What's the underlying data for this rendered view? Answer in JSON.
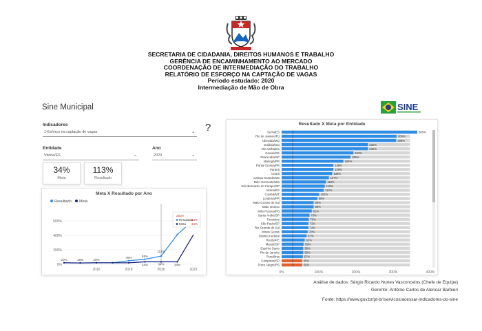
{
  "header": {
    "lines": [
      "SECRETARIA DE CIDADANIA, DIREITOS HUMANOS E TRABALHO",
      "GERÊNCIA DE ENCAMINHAMENTO AO MERCADO",
      "COORDENAÇÃO DE INTERMEDIAÇÃO DO TRABALHO",
      "RELATÓRIO DE ESFORÇO NA CAPTAÇÃO DE VAGAS",
      "Período estudado: 2020",
      "Intermediação de Mão de Obra"
    ]
  },
  "dashboard": {
    "title": "Sine Municipal",
    "logo_text": "SINE",
    "filters": {
      "indicadores_label": "Indicadores",
      "indicadores_value": "1-Esforço na captação de vagas",
      "entidade_label": "Entidade",
      "entidade_value": "Vitória/ES",
      "ano_label": "Ano",
      "ano_value": "2020",
      "help": "?"
    },
    "cards": [
      {
        "value": "34%",
        "label": "Meta"
      },
      {
        "value": "113%",
        "label": "Resultado"
      }
    ]
  },
  "colors": {
    "resultado": "#2f8de4",
    "meta": "#1a237e",
    "highlight": "#e06030",
    "gray_bar": "#d6d6d6"
  },
  "line_chart": {
    "title": "Meta X Resultado por Ano",
    "legend": [
      "Resultado",
      "Meta"
    ],
    "tooltip": {
      "year": "2020",
      "rows": [
        {
          "name": "Resultado",
          "value": "113%"
        },
        {
          "name": "Meta",
          "value": "34%"
        }
      ]
    }
  },
  "chart_data": [
    {
      "type": "line",
      "title": "Meta X Resultado por Ano",
      "x": [
        2014,
        2015,
        2016,
        2017,
        2018,
        2019,
        2020,
        2021,
        2022
      ],
      "xticks": [
        "2016",
        "2018",
        "2020",
        "2022"
      ],
      "ylim": [
        0,
        800
      ],
      "yticks": [
        "0%",
        "200%",
        "400%",
        "600%"
      ],
      "series": [
        {
          "name": "Resultado",
          "values": [
            20,
            18,
            20,
            20,
            49,
            69,
            113,
            410,
            610
          ]
        },
        {
          "name": "Meta",
          "values": [
            20,
            18,
            20,
            20,
            20,
            34,
            34,
            34,
            410
          ]
        }
      ],
      "point_labels": [
        {
          "x": 2014,
          "label": "20%"
        },
        {
          "x": 2015,
          "label": "18%"
        },
        {
          "x": 2016,
          "label": "20%"
        },
        {
          "x": 2018,
          "label": "49%"
        },
        {
          "x": 2019,
          "label": "69%"
        },
        {
          "x": 2019,
          "label": "34%"
        },
        {
          "x": 2020,
          "label": "113%"
        },
        {
          "x": 2020,
          "label": "34%"
        },
        {
          "x": 2021,
          "label": "34%"
        },
        {
          "x": 2022,
          "label": "610%"
        }
      ]
    },
    {
      "type": "bar",
      "title": "Resultado X Meta por Entidade",
      "orientation": "horizontal",
      "xlim": [
        0,
        400
      ],
      "xticks": [
        "0%",
        "100%",
        "200%",
        "300%",
        "400%"
      ],
      "categories": [
        "Serra/ES",
        "Rio de Janeiro/RJ",
        "Uberaba/MG",
        "Goiânia/GO",
        "Vila Velha/ES",
        "Caxias/CE",
        "Piracicaba/SP",
        "Maringá/PR",
        "Ponta Grossa/PR",
        "Paraná",
        "Ceará",
        "Campo Grande/MS",
        "Belo Horizonte/MG",
        "São Bernardo do Campo/SP",
        "Vitória/ES",
        "Cuiabá/MT",
        "Londrina/PR",
        "Mato Grosso do Sul",
        "Mato Grosso",
        "João Pessoa/PB",
        "Santo André/SP",
        "Tocantins",
        "São Paulo/SP",
        "Rio Grande do Sul",
        "Minas Gerais",
        "Distrito Federal",
        "Recife/PE",
        "Macaé/SP",
        "Espírito Santo",
        "Rio de Janeiro",
        "Rondônia",
        "Campinas/SP",
        "Porto Alegre/RS"
      ],
      "series": [
        {
          "name": "Resultado",
          "values": [
            365,
            309,
            308,
            232,
            232,
            193,
            185,
            166,
            139,
            139,
            136,
            127,
            119,
            116,
            113,
            101,
            96,
            86,
            86,
            81,
            75,
            73,
            72,
            72,
            70,
            67,
            62,
            59,
            58,
            58,
            57,
            55,
            55
          ]
        }
      ],
      "highlighted": [
        "Campinas/SP",
        "Porto Alegre/RS"
      ]
    }
  ],
  "bar_chart": {
    "title": "Resultado X Meta por Entidade",
    "value_labels": [
      "365%",
      "309%",
      "308%",
      "232%",
      "232%",
      "193%",
      "185%",
      "166%",
      "139%",
      "139%",
      "136%",
      "127%",
      "119%",
      "116%",
      "113%",
      "101%",
      "96%",
      "86%",
      "86%",
      "81%",
      "75%",
      "73%",
      "72%",
      "72%",
      "70%",
      "67%",
      "62%",
      "59%",
      "58%",
      "58%",
      "57%",
      "55%",
      "55%"
    ]
  },
  "credits": {
    "analise": "Análise de dados: Sérgio Ricardo Nunes Vasconcelos (Chefe de Equipe)",
    "gerente": "Gerente: Antônio Carlos de Alencar Barbieri",
    "fonte": "Fonte: https://www.gov.br/pt-br/servicos/acessar-indicadores-do-sine"
  }
}
